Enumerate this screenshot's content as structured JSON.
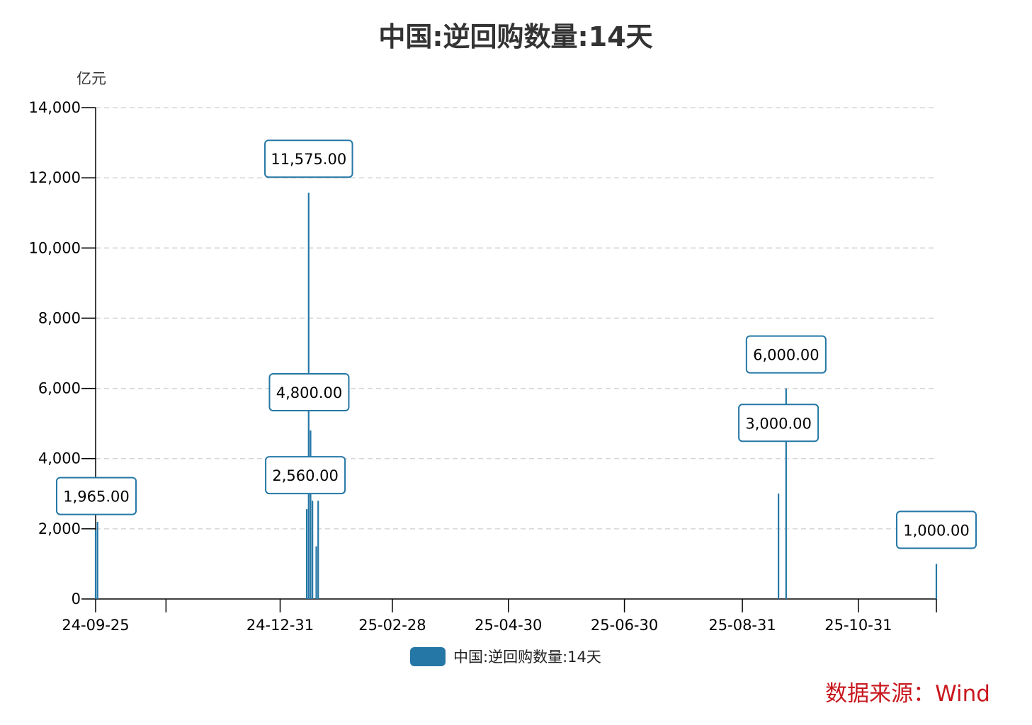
{
  "title": "中国:逆回购数量:14天",
  "unit_label": "亿元",
  "source_label": "数据来源：Wind",
  "colors": {
    "series": "#2577a6",
    "axis": "#000000",
    "grid": "#d6d6d6",
    "source": "#c8161d"
  },
  "chart_data": {
    "type": "bar",
    "title": "中国:逆回购数量:14天",
    "ylabel": "亿元",
    "ylim": [
      0,
      14000
    ],
    "yticks": [
      0,
      2000,
      4000,
      6000,
      8000,
      10000,
      12000,
      14000
    ],
    "ytick_labels": [
      "0",
      "2,000",
      "4,000",
      "6,000",
      "8,000",
      "10,000",
      "12,000",
      "14,000"
    ],
    "xlim": [
      "2024-09-25",
      "2025-12-11"
    ],
    "xticks": [
      "2024-09-25",
      "2024-11-01",
      "2024-12-31",
      "2025-02-28",
      "2025-04-30",
      "2025-06-30",
      "2025-08-31",
      "2025-10-31",
      "2025-12-11"
    ],
    "xtick_labels": [
      "24-09-25",
      "",
      "24-12-31",
      "25-02-28",
      "25-04-30",
      "25-06-30",
      "25-08-31",
      "25-10-31",
      ""
    ],
    "grid": "horizontal dashed",
    "legend_position": "bottom-center",
    "series": [
      {
        "name": "中国:逆回购数量:14天",
        "color": "#2577a6",
        "points": [
          {
            "x": "2024-09-25",
            "y": 1965,
            "label": "1,965.00"
          },
          {
            "x": "2024-09-26",
            "y": 2200
          },
          {
            "x": "2025-01-14",
            "y": 2560,
            "label": "2,560.00"
          },
          {
            "x": "2025-01-15",
            "y": 11575,
            "label": "11,575.00"
          },
          {
            "x": "2025-01-16",
            "y": 4800,
            "label": "4,800.00"
          },
          {
            "x": "2025-01-17",
            "y": 2800
          },
          {
            "x": "2025-01-19",
            "y": 1500
          },
          {
            "x": "2025-01-20",
            "y": 2800
          },
          {
            "x": "2025-09-19",
            "y": 3000,
            "label": "3,000.00"
          },
          {
            "x": "2025-09-23",
            "y": 6000,
            "label": "6,000.00"
          },
          {
            "x": "2025-12-11",
            "y": 1000,
            "label": "1,000.00"
          }
        ]
      }
    ]
  }
}
